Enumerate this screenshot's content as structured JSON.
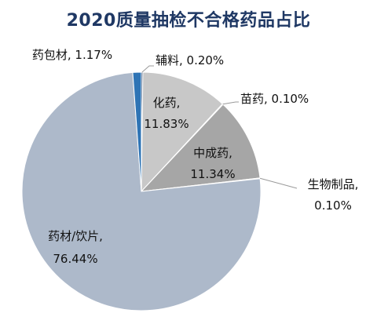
{
  "chart_data": {
    "type": "pie",
    "title": "2020质量抽检不合格药品占比",
    "slices": [
      {
        "name": "辅料",
        "value": 0.2,
        "label": "辅料, 0.20%",
        "color": "#1f3864"
      },
      {
        "name": "化药",
        "value": 11.83,
        "label_lines": [
          "化药,",
          "11.83%"
        ],
        "color": "#c8c8c8"
      },
      {
        "name": "苗药",
        "value": 0.1,
        "label": "苗药, 0.10%",
        "color": "#d9d9d9"
      },
      {
        "name": "中成药",
        "value": 11.34,
        "label_lines": [
          "中成药,",
          "11.34%"
        ],
        "color": "#a6a6a6"
      },
      {
        "name": "生物制品",
        "value": 0.1,
        "label_lines": [
          "生物制品,",
          "0.10%"
        ],
        "color": "#1f4e79"
      },
      {
        "name": "药材/饮片",
        "value": 76.44,
        "label_lines": [
          "药材/饮片,",
          "76.44%"
        ],
        "color": "#adb9ca"
      },
      {
        "name": "药包材",
        "value": 1.17,
        "label": "药包材, 1.17%",
        "color": "#2e74b5"
      }
    ],
    "start_angle": "top",
    "direction": "clockwise",
    "legend": "none"
  }
}
